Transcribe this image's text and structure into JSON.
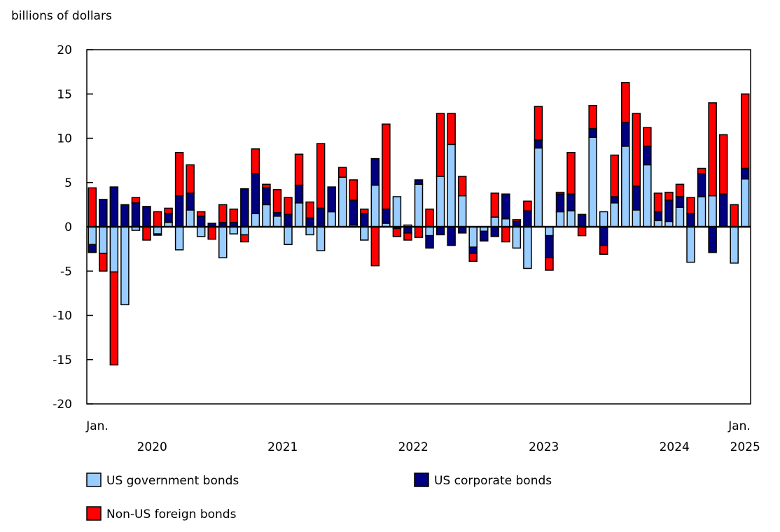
{
  "chart_data": {
    "type": "bar",
    "stacked": true,
    "title": "",
    "ylabel": "billions of dollars",
    "xlabel": "",
    "ylim": [
      -20,
      20
    ],
    "yticks": [
      20,
      15,
      10,
      5,
      0,
      -5,
      -10,
      -15,
      -20
    ],
    "grid": false,
    "legend_position": "bottom",
    "x_start_label": "Jan.",
    "x_end_label": "Jan.",
    "year_labels": [
      "2020",
      "2021",
      "2022",
      "2023",
      "2024",
      "2025"
    ],
    "categories": [
      "2020-01",
      "2020-02",
      "2020-03",
      "2020-04",
      "2020-05",
      "2020-06",
      "2020-07",
      "2020-08",
      "2020-09",
      "2020-10",
      "2020-11",
      "2020-12",
      "2021-01",
      "2021-02",
      "2021-03",
      "2021-04",
      "2021-05",
      "2021-06",
      "2021-07",
      "2021-08",
      "2021-09",
      "2021-10",
      "2021-11",
      "2021-12",
      "2022-01",
      "2022-02",
      "2022-03",
      "2022-04",
      "2022-05",
      "2022-06",
      "2022-07",
      "2022-08",
      "2022-09",
      "2022-10",
      "2022-11",
      "2022-12",
      "2023-01",
      "2023-02",
      "2023-03",
      "2023-04",
      "2023-05",
      "2023-06",
      "2023-07",
      "2023-08",
      "2023-09",
      "2023-10",
      "2023-11",
      "2023-12",
      "2024-01",
      "2024-02",
      "2024-03",
      "2024-04",
      "2024-05",
      "2024-06",
      "2024-07",
      "2024-08",
      "2024-09",
      "2024-10",
      "2024-11",
      "2024-12",
      "2025-01"
    ],
    "series": [
      {
        "name": "US government bonds",
        "color": "#99ccff",
        "values": [
          -2.0,
          -3.0,
          -5.1,
          -8.8,
          -0.4,
          0,
          -0.8,
          0.5,
          -2.6,
          1.9,
          -1.1,
          0,
          -3.5,
          -0.8,
          -0.9,
          1.5,
          2.5,
          1.2,
          -2.0,
          2.7,
          -0.9,
          -2.7,
          1.7,
          5.6,
          0.2,
          -1.5,
          4.7,
          0.4,
          3.4,
          0.2,
          4.8,
          -1.0,
          5.7,
          9.3,
          3.5,
          -2.3,
          -0.5,
          1.1,
          0.9,
          -2.4,
          -4.7,
          8.9,
          -1.0,
          1.7,
          1.8,
          0.1,
          10.1,
          1.7,
          2.7,
          9.1,
          1.9,
          7.0,
          0.7,
          0.6,
          2.2,
          -4.0,
          3.4,
          3.5,
          0.1,
          -4.1,
          5.4
        ]
      },
      {
        "name": "US corporate bonds",
        "color": "#000080",
        "values": [
          -0.9,
          3.1,
          4.5,
          2.5,
          2.7,
          2.3,
          -0.15,
          1.0,
          3.5,
          1.9,
          1.2,
          0.4,
          0.5,
          0.5,
          4.3,
          4.5,
          1.9,
          0.4,
          1.4,
          2.0,
          1.0,
          2.1,
          2.8,
          0,
          2.8,
          1.5,
          3.0,
          1.6,
          -0.2,
          -0.7,
          0.5,
          -1.4,
          -0.9,
          -2.1,
          -0.7,
          -0.7,
          -1.1,
          -1.1,
          2.8,
          0.6,
          1.8,
          0.9,
          -2.5,
          2.0,
          1.9,
          1.3,
          1.0,
          -2.1,
          0.7,
          2.7,
          2.7,
          2.1,
          1.0,
          2.4,
          1.2,
          1.5,
          2.6,
          -2.9,
          3.6,
          0,
          1.2
        ]
      },
      {
        "name": "Non-US foreign bonds",
        "color": "#ff0000",
        "values": [
          4.4,
          -2.0,
          -10.5,
          0,
          0.6,
          -1.5,
          1.7,
          0.6,
          4.9,
          3.2,
          0.5,
          -1.4,
          2.0,
          1.5,
          -0.8,
          2.8,
          0.4,
          2.6,
          1.9,
          3.5,
          1.8,
          7.3,
          0,
          1.1,
          2.3,
          0.5,
          -4.4,
          9.6,
          -0.9,
          -0.8,
          -1.2,
          2.0,
          7.1,
          3.5,
          2.2,
          -0.9,
          0,
          2.7,
          -1.7,
          0.2,
          1.1,
          3.8,
          -1.4,
          0.2,
          4.7,
          -1.0,
          2.6,
          -1.0,
          4.7,
          4.5,
          8.2,
          2.1,
          2.1,
          0.9,
          1.4,
          1.8,
          0.6,
          10.5,
          6.7,
          2.5,
          8.4
        ]
      }
    ]
  }
}
